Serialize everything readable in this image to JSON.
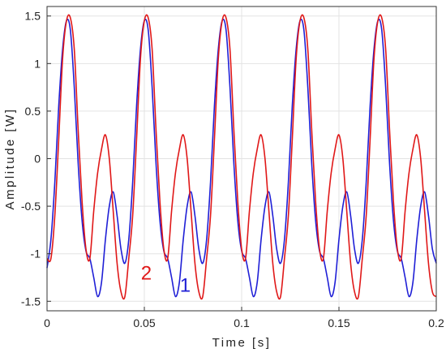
{
  "chart_data": {
    "type": "line",
    "title": "",
    "xlabel": "Time [s]",
    "ylabel": "Amplitude [W]",
    "xlim": [
      0,
      0.2
    ],
    "ylim": [
      -1.6,
      1.6
    ],
    "xticks": [
      0,
      0.05,
      0.1,
      0.15,
      0.2
    ],
    "xtick_labels": [
      "0",
      "0.05",
      "0.1",
      "0.15",
      "0.2"
    ],
    "yticks": [
      -1.5,
      -1,
      -0.5,
      0,
      0.5,
      1,
      1.5
    ],
    "ytick_labels": [
      "-1.5",
      "-1",
      "-0.5",
      "0",
      "0.5",
      "1",
      "1.5"
    ],
    "grid": true,
    "colors": {
      "series_1": "#1f1fd6",
      "series_2": "#e01818"
    },
    "annotations": [
      {
        "text": "2",
        "color": "#e01818",
        "x": 0.051,
        "y": -1.27
      },
      {
        "text": "1",
        "color": "#1f1fd6",
        "x": 0.071,
        "y": -1.4
      }
    ],
    "series": [
      {
        "color": "#1f1fd6",
        "x": [
          0.0,
          0.002,
          0.004,
          0.006,
          0.008,
          0.01,
          0.012,
          0.014,
          0.016,
          0.018,
          0.02,
          0.022,
          0.024,
          0.026,
          0.028,
          0.03,
          0.032,
          0.034,
          0.036,
          0.038,
          0.04,
          0.042,
          0.044,
          0.046,
          0.048,
          0.05,
          0.052,
          0.054,
          0.056,
          0.058,
          0.06,
          0.062,
          0.064,
          0.066,
          0.068,
          0.07,
          0.072,
          0.074,
          0.076,
          0.078,
          0.08,
          0.082,
          0.084,
          0.086,
          0.088,
          0.09,
          0.092,
          0.094,
          0.096,
          0.098,
          0.1,
          0.102,
          0.104,
          0.106,
          0.108,
          0.11,
          0.112,
          0.114,
          0.116,
          0.118,
          0.12,
          0.122,
          0.124,
          0.126,
          0.128,
          0.13,
          0.132,
          0.134,
          0.136,
          0.138,
          0.14,
          0.142,
          0.144,
          0.146,
          0.148,
          0.15,
          0.152,
          0.154,
          0.156,
          0.158,
          0.16,
          0.162,
          0.164,
          0.166,
          0.168,
          0.17,
          0.172,
          0.174,
          0.176,
          0.178,
          0.18,
          0.182,
          0.184,
          0.186,
          0.188,
          0.19,
          0.192,
          0.194,
          0.196,
          0.198,
          0.2
        ],
        "y": [
          -1.15,
          -0.85,
          -0.25,
          0.55,
          1.15,
          1.45,
          1.35,
          0.75,
          -0.05,
          -0.65,
          -0.97,
          -1.05,
          -1.25,
          -1.45,
          -1.3,
          -0.85,
          -0.5,
          -0.35,
          -0.6,
          -0.95,
          -1.1,
          -0.85,
          -0.25,
          0.55,
          1.15,
          1.45,
          1.35,
          0.75,
          -0.05,
          -0.65,
          -0.97,
          -1.05,
          -1.25,
          -1.45,
          -1.3,
          -0.85,
          -0.5,
          -0.35,
          -0.6,
          -0.95,
          -1.1,
          -0.85,
          -0.25,
          0.55,
          1.15,
          1.45,
          1.35,
          0.75,
          -0.05,
          -0.65,
          -0.97,
          -1.05,
          -1.25,
          -1.45,
          -1.3,
          -0.85,
          -0.5,
          -0.35,
          -0.6,
          -0.95,
          -1.1,
          -0.85,
          -0.25,
          0.55,
          1.15,
          1.45,
          1.35,
          0.75,
          -0.05,
          -0.65,
          -0.97,
          -1.05,
          -1.25,
          -1.45,
          -1.3,
          -0.85,
          -0.5,
          -0.35,
          -0.6,
          -0.95,
          -1.1,
          -0.85,
          -0.25,
          0.55,
          1.15,
          1.45,
          1.35,
          0.75,
          -0.05,
          -0.65,
          -0.97,
          -1.05,
          -1.25,
          -1.45,
          -1.3,
          -0.85,
          -0.5,
          -0.35,
          -0.6,
          -0.95,
          -1.1
        ]
      },
      {
        "color": "#e01818",
        "x": [
          0.0,
          0.002,
          0.004,
          0.006,
          0.008,
          0.01,
          0.012,
          0.014,
          0.016,
          0.018,
          0.02,
          0.022,
          0.024,
          0.026,
          0.028,
          0.03,
          0.032,
          0.034,
          0.036,
          0.038,
          0.04,
          0.042,
          0.044,
          0.046,
          0.048,
          0.05,
          0.052,
          0.054,
          0.056,
          0.058,
          0.06,
          0.062,
          0.064,
          0.066,
          0.068,
          0.07,
          0.072,
          0.074,
          0.076,
          0.078,
          0.08,
          0.082,
          0.084,
          0.086,
          0.088,
          0.09,
          0.092,
          0.094,
          0.096,
          0.098,
          0.1,
          0.102,
          0.104,
          0.106,
          0.108,
          0.11,
          0.112,
          0.114,
          0.116,
          0.118,
          0.12,
          0.122,
          0.124,
          0.126,
          0.128,
          0.13,
          0.132,
          0.134,
          0.136,
          0.138,
          0.14,
          0.142,
          0.144,
          0.146,
          0.148,
          0.15,
          0.152,
          0.154,
          0.156,
          0.158,
          0.16,
          0.162,
          0.164,
          0.166,
          0.168,
          0.17,
          0.172,
          0.174,
          0.176,
          0.178,
          0.18,
          0.182,
          0.184,
          0.186,
          0.188,
          0.19,
          0.192,
          0.194,
          0.196,
          0.198,
          0.2
        ],
        "y": [
          -1.05,
          -1.05,
          -0.6,
          0.2,
          1.05,
          1.45,
          1.48,
          1.15,
          0.3,
          -0.45,
          -0.95,
          -1.05,
          -0.55,
          -0.15,
          0.1,
          0.25,
          0.0,
          -0.55,
          -1.1,
          -1.4,
          -1.45,
          -1.05,
          -0.6,
          0.2,
          1.05,
          1.45,
          1.48,
          1.15,
          0.3,
          -0.45,
          -0.95,
          -1.05,
          -0.55,
          -0.15,
          0.1,
          0.25,
          0.0,
          -0.55,
          -1.1,
          -1.4,
          -1.45,
          -1.05,
          -0.6,
          0.2,
          1.05,
          1.45,
          1.48,
          1.15,
          0.3,
          -0.45,
          -0.95,
          -1.05,
          -0.55,
          -0.15,
          0.1,
          0.25,
          0.0,
          -0.55,
          -1.1,
          -1.4,
          -1.45,
          -1.05,
          -0.6,
          0.2,
          1.05,
          1.45,
          1.48,
          1.15,
          0.3,
          -0.45,
          -0.95,
          -1.05,
          -0.55,
          -0.15,
          0.1,
          0.25,
          0.0,
          -0.55,
          -1.1,
          -1.4,
          -1.45,
          -1.05,
          -0.6,
          0.2,
          1.05,
          1.45,
          1.48,
          1.15,
          0.3,
          -0.45,
          -0.95,
          -1.05,
          -0.55,
          -0.15,
          0.1,
          0.25,
          0.0,
          -0.55,
          -1.1,
          -1.4,
          -1.45
        ]
      }
    ]
  }
}
